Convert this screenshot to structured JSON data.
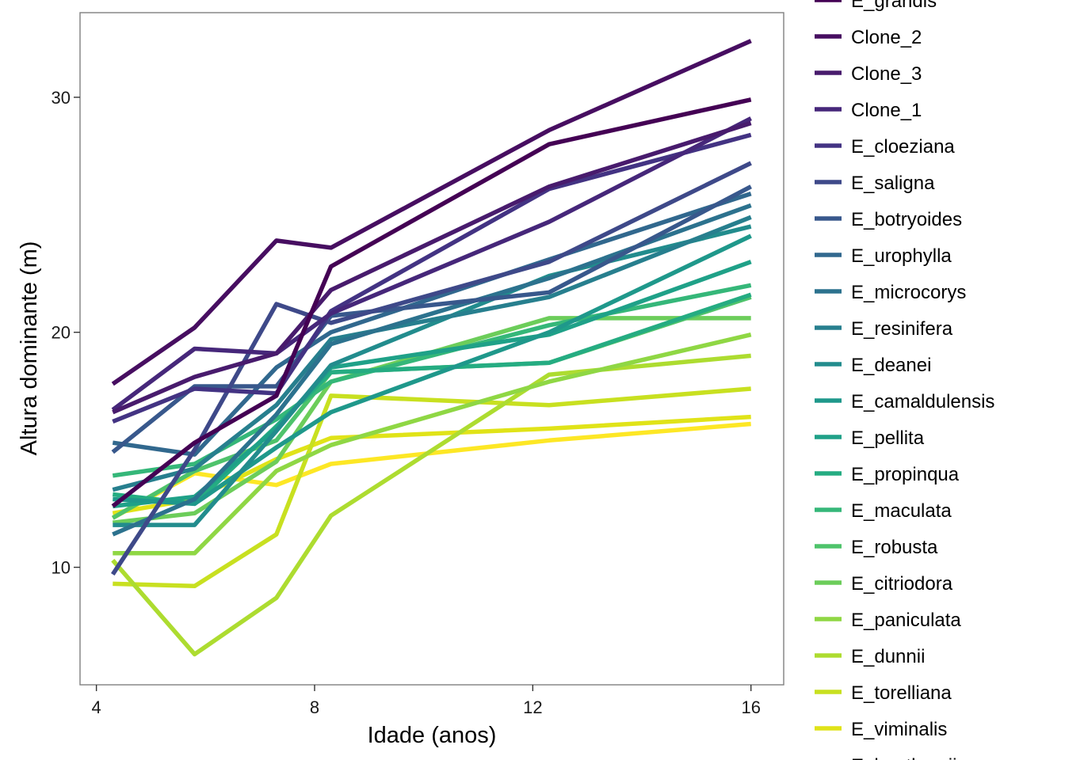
{
  "chart_data": {
    "type": "line",
    "title": "",
    "xlabel": "Idade (anos)",
    "ylabel": "Altura dominante (m)",
    "xlim": [
      3.7,
      16.6
    ],
    "ylim": [
      5.0,
      33.6
    ],
    "x_ticks": [
      4,
      8,
      12,
      16
    ],
    "y_ticks": [
      10,
      20,
      30
    ],
    "grid": false,
    "legend_position": "right",
    "x": [
      4.3,
      5.8,
      7.3,
      8.3,
      12.3,
      16.0
    ],
    "series": [
      {
        "name": "E_grandis",
        "color": "#440154",
        "values": [
          12.6,
          15.3,
          17.3,
          22.8,
          28.0,
          29.9
        ]
      },
      {
        "name": "Clone_2",
        "color": "#470E61",
        "values": [
          17.8,
          20.2,
          23.9,
          23.6,
          28.6,
          32.4
        ]
      },
      {
        "name": "Clone_3",
        "color": "#481B6D",
        "values": [
          16.6,
          18.1,
          19.1,
          21.8,
          26.2,
          28.9
        ]
      },
      {
        "name": "Clone_1",
        "color": "#46277A",
        "values": [
          16.7,
          19.3,
          19.1,
          20.8,
          24.7,
          29.1
        ]
      },
      {
        "name": "E_cloeziana",
        "color": "#433383",
        "values": [
          16.2,
          17.6,
          17.4,
          20.9,
          26.1,
          28.4
        ]
      },
      {
        "name": "E_saligna",
        "color": "#3E4989",
        "values": [
          9.7,
          15.0,
          21.2,
          20.4,
          23.0,
          27.2
        ]
      },
      {
        "name": "E_botryoides",
        "color": "#38588C",
        "values": [
          14.9,
          17.7,
          17.7,
          20.7,
          21.7,
          26.2
        ]
      },
      {
        "name": "E_urophylla",
        "color": "#31688E",
        "values": [
          15.3,
          14.8,
          18.5,
          20.0,
          23.1,
          25.9
        ]
      },
      {
        "name": "E_microcorys",
        "color": "#2C728E",
        "values": [
          11.4,
          12.9,
          16.5,
          19.5,
          22.3,
          25.4
        ]
      },
      {
        "name": "E_resinifera",
        "color": "#277F8E",
        "values": [
          13.3,
          14.2,
          16.9,
          19.7,
          21.5,
          24.9
        ]
      },
      {
        "name": "E_deanei",
        "color": "#228C8D",
        "values": [
          11.8,
          11.8,
          15.8,
          18.6,
          22.4,
          24.5
        ]
      },
      {
        "name": "E_camaldulensis",
        "color": "#1F988B",
        "values": [
          12.9,
          12.7,
          15.1,
          16.6,
          20.0,
          24.1
        ]
      },
      {
        "name": "E_pellita",
        "color": "#1FA188",
        "values": [
          12.6,
          13.0,
          15.9,
          18.5,
          19.9,
          23.0
        ]
      },
      {
        "name": "E_propinqua",
        "color": "#25AC82",
        "values": [
          13.1,
          12.7,
          16.0,
          18.3,
          18.7,
          21.6
        ]
      },
      {
        "name": "E_maculata",
        "color": "#35B779",
        "values": [
          13.9,
          14.4,
          16.3,
          17.9,
          20.3,
          22.0
        ]
      },
      {
        "name": "E_robusta",
        "color": "#4EC36B",
        "values": [
          12.1,
          14.1,
          15.4,
          18.3,
          18.7,
          21.5
        ]
      },
      {
        "name": "E_citriodora",
        "color": "#6CCD5A",
        "values": [
          11.9,
          12.3,
          14.5,
          17.9,
          20.6,
          20.6
        ]
      },
      {
        "name": "E_paniculata",
        "color": "#8FD744",
        "values": [
          10.6,
          10.6,
          14.1,
          15.2,
          17.9,
          19.9
        ]
      },
      {
        "name": "E_dunnii",
        "color": "#ADDC30",
        "values": [
          10.3,
          6.3,
          8.7,
          12.2,
          18.2,
          19.0
        ]
      },
      {
        "name": "E_torelliana",
        "color": "#C8E020",
        "values": [
          9.3,
          9.2,
          11.4,
          17.3,
          16.9,
          17.6
        ]
      },
      {
        "name": "E_viminalis",
        "color": "#E0E318",
        "values": [
          12.3,
          12.9,
          14.6,
          15.5,
          15.9,
          16.4
        ]
      },
      {
        "name": "E_benthamii",
        "color": "#FDE725",
        "values": [
          12.1,
          14.0,
          13.5,
          14.4,
          15.4,
          16.1
        ]
      }
    ]
  }
}
